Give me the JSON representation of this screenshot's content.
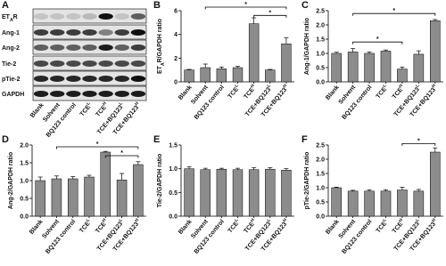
{
  "blot": {
    "panel": "A",
    "rows": [
      [
        "ET",
        "A",
        "R"
      ],
      "Ang-1",
      "Ang-2",
      "Tie-2",
      "pTie-2",
      "GAPDH"
    ],
    "lanes": [
      "Blank",
      "Solvent",
      "BQ123 control",
      [
        "TCE",
        "L"
      ],
      [
        "TCE",
        "H"
      ],
      [
        "TCE+BQ123",
        "L"
      ],
      [
        "TCE+BQ123",
        "H"
      ]
    ]
  },
  "chart_data": [
    {
      "type": "bar",
      "panel": "B",
      "y_label": [
        "ET",
        "A",
        "R/GAPDH ratio"
      ],
      "color": "#8c8c8c",
      "categories": [
        "Blank",
        "Solvent",
        "BQ123 control",
        [
          "TCE",
          "L"
        ],
        [
          "TCE",
          "H"
        ],
        [
          "TCE+BQ123",
          "L"
        ],
        [
          "TCE+BQ123",
          "H"
        ]
      ],
      "values": [
        1.0,
        1.2,
        1.1,
        1.2,
        4.9,
        1.0,
        3.2
      ],
      "errors": [
        0.05,
        0.3,
        0.15,
        0.1,
        0.5,
        0.05,
        0.5
      ],
      "ylim": [
        0,
        6
      ],
      "yticks": [
        0,
        2,
        4,
        6
      ],
      "annotations": [
        {
          "from": 1,
          "to": 6,
          "y": 6.3,
          "label": "*"
        },
        {
          "from": 4,
          "to": 6,
          "y": 5.6,
          "label": "*"
        }
      ]
    },
    {
      "type": "bar",
      "panel": "C",
      "y_label": "Ang-1/GAPDH ratio",
      "color": "#8c8c8c",
      "categories": [
        "Blank",
        "Solvent",
        "BQ123 control",
        [
          "TCE",
          "L"
        ],
        [
          "TCE",
          "H"
        ],
        [
          "TCE+BQ123",
          "L"
        ],
        [
          "TCE+BQ123",
          "H"
        ]
      ],
      "values": [
        1.0,
        1.05,
        1.0,
        1.08,
        0.45,
        0.97,
        2.15
      ],
      "errors": [
        0.04,
        0.12,
        0.05,
        0.04,
        0.07,
        0.12,
        0.04
      ],
      "ylim": [
        0,
        2.5
      ],
      "yticks": [
        {
          "value": 0,
          "label": "0.0"
        },
        0.5,
        {
          "value": 1,
          "label": "1.0"
        },
        1.5,
        {
          "value": 2,
          "label": "2.0"
        },
        2.5
      ],
      "annotations": [
        {
          "from": 1,
          "to": 6,
          "y": 2.4,
          "label": "*"
        },
        {
          "from": 1,
          "to": 4,
          "y": 1.4,
          "label": "*"
        }
      ]
    },
    {
      "type": "bar",
      "panel": "D",
      "y_label": "Ang-2/GAPDH ratio",
      "color": "#8c8c8c",
      "categories": [
        "Blank",
        "Solvent",
        "BQ123 control",
        [
          "TCE",
          "L"
        ],
        [
          "TCE",
          "H"
        ],
        [
          "TCE+BQ123",
          "L"
        ],
        [
          "TCE+BQ123",
          "H"
        ]
      ],
      "values": [
        1.0,
        1.05,
        1.05,
        1.1,
        1.8,
        1.02,
        1.45
      ],
      "errors": [
        0.1,
        0.08,
        0.06,
        0.05,
        0.02,
        0.18,
        0.08
      ],
      "ylim": [
        0,
        2
      ],
      "yticks": [
        {
          "value": 0,
          "label": "0.0"
        },
        0.5,
        {
          "value": 1,
          "label": "1.0"
        },
        1.5,
        {
          "value": 2,
          "label": "2.0"
        }
      ],
      "annotations": [
        {
          "from": 1,
          "to": 6,
          "y": 1.95,
          "label": "*"
        },
        {
          "from": 4,
          "to": 6,
          "y": 1.7,
          "label": "*"
        }
      ]
    },
    {
      "type": "bar",
      "panel": "E",
      "y_label": "Tie-2/GAPDH ratio",
      "color": "#8c8c8c",
      "categories": [
        "Blank",
        "Solvent",
        "BQ123 control",
        [
          "TCE",
          "L"
        ],
        [
          "TCE",
          "H"
        ],
        [
          "TCE+BQ123",
          "L"
        ],
        [
          "TCE+BQ123",
          "H"
        ]
      ],
      "values": [
        1.0,
        0.98,
        0.99,
        0.98,
        0.98,
        0.99,
        0.97
      ],
      "errors": [
        0.04,
        0.03,
        0.02,
        0.03,
        0.04,
        0.03,
        0.03
      ],
      "ylim": [
        0,
        1.5
      ],
      "yticks": [
        {
          "value": 0,
          "label": "0.0"
        },
        0.5,
        {
          "value": 1,
          "label": "1.0"
        },
        1.5
      ],
      "annotations": []
    },
    {
      "type": "bar",
      "panel": "F",
      "y_label": "pTie-2/GAPDH ratio",
      "color": "#8c8c8c",
      "categories": [
        "Blank",
        "Solvent",
        "BQ123 control",
        [
          "TCE",
          "L"
        ],
        [
          "TCE",
          "H"
        ],
        [
          "TCE+BQ123",
          "L"
        ],
        [
          "TCE+BQ123",
          "H"
        ]
      ],
      "values": [
        1.0,
        0.88,
        0.88,
        0.88,
        0.92,
        0.88,
        2.25
      ],
      "errors": [
        0.02,
        0.03,
        0.05,
        0.05,
        0.1,
        0.06,
        0.15
      ],
      "ylim": [
        0,
        2.5
      ],
      "yticks": [
        {
          "value": 0,
          "label": "0.0"
        },
        0.5,
        {
          "value": 1,
          "label": "1.0"
        },
        1.5,
        {
          "value": 2,
          "label": "2.0"
        },
        2.5
      ],
      "annotations": [
        {
          "from": 4,
          "to": 6,
          "y": 2.55,
          "label": "*"
        }
      ]
    }
  ]
}
